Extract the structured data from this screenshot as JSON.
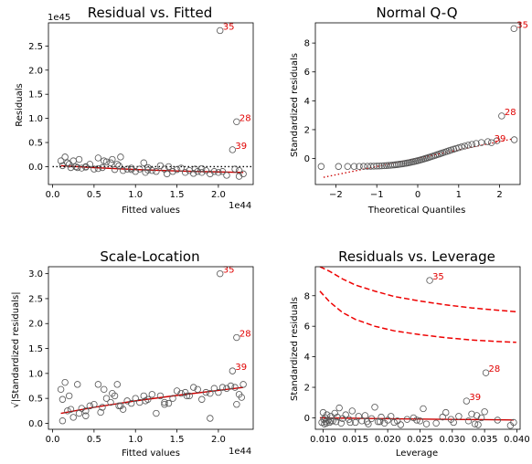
{
  "chart_data": [
    {
      "type": "scatter",
      "title": "Residual vs. Fitted",
      "xlabel": "Fitted values",
      "ylabel": "Residuals",
      "x_offset_label": "1e44",
      "y_offset_label": "1e45",
      "xlim": [
        -0.05,
        2.42
      ],
      "ylim": [
        -0.37,
        2.98
      ],
      "xticks": [
        0.0,
        0.5,
        1.0,
        1.5,
        2.0
      ],
      "yticks": [
        0.0,
        0.5,
        1.0,
        1.5,
        2.0,
        2.5
      ],
      "xtick_labels": [
        "0.0",
        "0.5",
        "1.0",
        "1.5",
        "2.0"
      ],
      "ytick_labels": [
        "0.0",
        "0.5",
        "1.0",
        "1.5",
        "2.0",
        "2.5"
      ],
      "points": {
        "x": [
          0.1,
          0.12,
          0.15,
          0.2,
          0.22,
          0.28,
          0.32,
          0.35,
          0.4,
          0.45,
          0.5,
          0.55,
          0.6,
          0.62,
          0.7,
          0.75,
          0.78,
          0.8,
          0.82,
          0.85,
          0.9,
          0.95,
          1.0,
          1.05,
          1.1,
          1.12,
          1.15,
          1.2,
          1.25,
          1.3,
          1.35,
          1.38,
          1.45,
          1.5,
          1.6,
          1.65,
          1.7,
          1.72,
          1.75,
          1.8,
          1.85,
          1.9,
          1.95,
          2.0,
          2.1,
          2.2,
          2.25,
          2.3,
          0.3,
          0.55,
          0.65,
          1.15,
          1.55,
          0.18,
          0.25,
          0.4,
          0.72,
          0.95,
          1.4,
          1.8,
          2.05,
          2.25
        ],
        "y": [
          0.12,
          0.02,
          0.2,
          0.05,
          -0.02,
          0.0,
          0.15,
          -0.03,
          0.0,
          0.05,
          -0.05,
          0.18,
          -0.02,
          0.12,
          0.08,
          -0.06,
          0.05,
          0.02,
          0.2,
          -0.08,
          -0.05,
          -0.03,
          -0.1,
          -0.05,
          0.08,
          -0.12,
          -0.02,
          -0.08,
          -0.1,
          0.02,
          -0.05,
          -0.15,
          -0.1,
          -0.06,
          -0.12,
          -0.08,
          -0.14,
          -0.05,
          -0.1,
          -0.12,
          -0.08,
          -0.15,
          -0.1,
          -0.12,
          -0.18,
          -0.05,
          -0.2,
          -0.15,
          -0.02,
          -0.04,
          0.1,
          -0.07,
          -0.03,
          0.08,
          0.12,
          -0.01,
          0.15,
          -0.06,
          0.0,
          -0.04,
          -0.1,
          -0.08
        ],
        "labeled": [
          {
            "x": 2.02,
            "y": 2.82,
            "label": "35"
          },
          {
            "x": 2.22,
            "y": 0.93,
            "label": "28"
          },
          {
            "x": 2.17,
            "y": 0.35,
            "label": "39"
          }
        ]
      },
      "lines": [
        {
          "style": "solid",
          "color": "#cc0000",
          "x": [
            0.1,
            0.5,
            1.0,
            1.5,
            2.0,
            2.3
          ],
          "y": [
            0.02,
            -0.02,
            -0.06,
            -0.09,
            -0.11,
            -0.12
          ]
        },
        {
          "style": "dotted",
          "color": "#000000",
          "x": [
            0.0,
            2.42
          ],
          "y": [
            0.0,
            0.0
          ]
        }
      ]
    },
    {
      "type": "scatter",
      "title": "Normal Q-Q",
      "xlabel": "Theoretical Quantiles",
      "ylabel": "Standardized residuals",
      "xlim": [
        -2.5,
        2.5
      ],
      "ylim": [
        -1.8,
        9.4
      ],
      "xticks": [
        -2,
        -1,
        0,
        1,
        2
      ],
      "yticks": [
        0,
        2,
        4,
        6,
        8
      ],
      "xtick_labels": [
        "−2",
        "−1",
        "0",
        "1",
        "2"
      ],
      "ytick_labels": [
        "0",
        "2",
        "4",
        "6",
        "8"
      ],
      "qq": {
        "n": 62,
        "y_start": -0.55,
        "y_end": 1.3
      },
      "points": {
        "labeled": [
          {
            "x": 2.35,
            "y": 9.0,
            "label": "35"
          },
          {
            "x": 2.05,
            "y": 2.95,
            "label": "28"
          },
          {
            "x": 1.8,
            "y": 1.1,
            "label": "39"
          }
        ]
      },
      "lines": [
        {
          "style": "dotted",
          "color": "#cc0000",
          "x": [
            -2.3,
            2.3
          ],
          "y": [
            -1.3,
            1.35
          ]
        }
      ]
    },
    {
      "type": "scatter",
      "title": "Scale-Location",
      "xlabel": "Fitted values",
      "ylabel": "√|Standardized residuals|",
      "x_offset_label": "1e44",
      "xlim": [
        -0.05,
        2.42
      ],
      "ylim": [
        -0.12,
        3.14
      ],
      "xticks": [
        0.0,
        0.5,
        1.0,
        1.5,
        2.0
      ],
      "yticks": [
        0.0,
        0.5,
        1.0,
        1.5,
        2.0,
        2.5,
        3.0
      ],
      "xtick_labels": [
        "0.0",
        "0.5",
        "1.0",
        "1.5",
        "2.0"
      ],
      "ytick_labels": [
        "0.0",
        "0.5",
        "1.0",
        "1.5",
        "2.0",
        "2.5",
        "3.0"
      ],
      "points": {
        "x": [
          0.1,
          0.12,
          0.15,
          0.18,
          0.2,
          0.25,
          0.3,
          0.32,
          0.35,
          0.4,
          0.45,
          0.5,
          0.55,
          0.6,
          0.62,
          0.65,
          0.7,
          0.72,
          0.75,
          0.78,
          0.8,
          0.85,
          0.9,
          0.95,
          1.0,
          1.05,
          1.1,
          1.15,
          1.2,
          1.25,
          1.3,
          1.35,
          1.4,
          1.45,
          1.5,
          1.55,
          1.6,
          1.65,
          1.7,
          1.75,
          1.8,
          1.85,
          1.9,
          1.95,
          2.0,
          2.05,
          2.1,
          2.15,
          2.2,
          2.25,
          2.3,
          0.22,
          0.4,
          0.58,
          0.82,
          1.12,
          1.35,
          1.62,
          1.9,
          2.22,
          2.28,
          0.12
        ],
        "y": [
          0.68,
          0.48,
          0.82,
          0.25,
          0.55,
          0.12,
          0.78,
          0.2,
          0.3,
          0.15,
          0.35,
          0.38,
          0.78,
          0.32,
          0.68,
          0.5,
          0.42,
          0.6,
          0.55,
          0.78,
          0.35,
          0.28,
          0.45,
          0.4,
          0.5,
          0.42,
          0.55,
          0.48,
          0.58,
          0.2,
          0.55,
          0.42,
          0.4,
          0.5,
          0.65,
          0.6,
          0.62,
          0.55,
          0.72,
          0.68,
          0.48,
          0.62,
          0.1,
          0.7,
          0.62,
          0.72,
          0.7,
          0.75,
          0.72,
          0.58,
          0.78,
          0.28,
          0.25,
          0.22,
          0.35,
          0.45,
          0.38,
          0.55,
          0.6,
          0.38,
          0.52,
          0.05
        ],
        "labeled": [
          {
            "x": 2.02,
            "y": 3.0,
            "label": "35"
          },
          {
            "x": 2.22,
            "y": 1.72,
            "label": "28"
          },
          {
            "x": 2.17,
            "y": 1.05,
            "label": "39"
          }
        ]
      },
      "lines": [
        {
          "style": "solid",
          "color": "#cc0000",
          "x": [
            0.1,
            0.5,
            1.0,
            1.5,
            2.0,
            2.3
          ],
          "y": [
            0.2,
            0.32,
            0.45,
            0.56,
            0.66,
            0.72
          ]
        }
      ]
    },
    {
      "type": "scatter",
      "title": "Residuals vs. Leverage",
      "xlabel": "Leverage",
      "ylabel": "Standardized residuals",
      "xlim": [
        0.0088,
        0.0405
      ],
      "ylim": [
        -0.75,
        9.9
      ],
      "xticks": [
        0.01,
        0.015,
        0.02,
        0.025,
        0.03,
        0.035,
        0.04
      ],
      "yticks": [
        0,
        2,
        4,
        6,
        8
      ],
      "xtick_labels": [
        "0.010",
        "0.015",
        "0.020",
        "0.025",
        "0.030",
        "0.035",
        "0.040"
      ],
      "ytick_labels": [
        "0",
        "2",
        "4",
        "6",
        "8"
      ],
      "points": {
        "x": [
          0.0098,
          0.01,
          0.0101,
          0.0102,
          0.0103,
          0.0104,
          0.0105,
          0.0106,
          0.0108,
          0.011,
          0.0112,
          0.0115,
          0.0118,
          0.012,
          0.0122,
          0.0125,
          0.013,
          0.0135,
          0.014,
          0.0145,
          0.015,
          0.0155,
          0.016,
          0.0165,
          0.017,
          0.0175,
          0.018,
          0.0185,
          0.019,
          0.0195,
          0.02,
          0.0205,
          0.021,
          0.022,
          0.023,
          0.024,
          0.025,
          0.0255,
          0.026,
          0.0275,
          0.0285,
          0.029,
          0.0298,
          0.0302,
          0.031,
          0.0325,
          0.033,
          0.0335,
          0.034,
          0.0345,
          0.035,
          0.037,
          0.039,
          0.0395,
          0.0112,
          0.0128,
          0.0142,
          0.0168,
          0.0188,
          0.0215,
          0.0245,
          0.0338
        ],
        "y": [
          -0.3,
          0.35,
          -0.1,
          -0.4,
          0.0,
          -0.25,
          -0.35,
          0.2,
          -0.15,
          -0.3,
          0.1,
          -0.2,
          0.3,
          -0.25,
          0.05,
          0.65,
          -0.05,
          0.2,
          -0.1,
          0.45,
          -0.3,
          0.1,
          -0.2,
          0.15,
          -0.4,
          -0.05,
          0.7,
          -0.25,
          0.05,
          -0.35,
          -0.15,
          0.1,
          -0.3,
          -0.45,
          -0.1,
          0.0,
          -0.2,
          0.6,
          -0.4,
          -0.35,
          0.05,
          0.35,
          -0.1,
          -0.3,
          0.1,
          -0.2,
          0.25,
          -0.4,
          -0.45,
          0.0,
          0.4,
          -0.15,
          -0.5,
          -0.3,
          -0.2,
          -0.35,
          -0.3,
          -0.25,
          -0.25,
          -0.2,
          -0.15,
          0.15
        ],
        "labeled": [
          {
            "x": 0.0265,
            "y": 9.0,
            "label": "35"
          },
          {
            "x": 0.0352,
            "y": 2.95,
            "label": "28"
          },
          {
            "x": 0.0322,
            "y": 1.1,
            "label": "39"
          }
        ]
      },
      "lines": [
        {
          "style": "solid",
          "color": "#cc0000",
          "x": [
            0.0095,
            0.015,
            0.02,
            0.025,
            0.03,
            0.035,
            0.0395
          ],
          "y": [
            0.0,
            -0.03,
            -0.06,
            -0.08,
            -0.1,
            -0.12,
            -0.14
          ]
        },
        {
          "style": "dashed",
          "color": "#ee0000",
          "x": [
            0.0095,
            0.011,
            0.013,
            0.015,
            0.018,
            0.021,
            0.025,
            0.029,
            0.033,
            0.037,
            0.0399
          ],
          "y": [
            9.9,
            9.6,
            9.1,
            8.7,
            8.3,
            7.95,
            7.65,
            7.4,
            7.2,
            7.05,
            6.95
          ]
        },
        {
          "style": "dashed",
          "color": "#ee0000",
          "x": [
            0.0095,
            0.011,
            0.013,
            0.015,
            0.018,
            0.021,
            0.025,
            0.029,
            0.033,
            0.037,
            0.0399
          ],
          "y": [
            8.3,
            7.6,
            6.9,
            6.45,
            6.0,
            5.7,
            5.45,
            5.25,
            5.1,
            5.0,
            4.95
          ]
        }
      ]
    }
  ]
}
